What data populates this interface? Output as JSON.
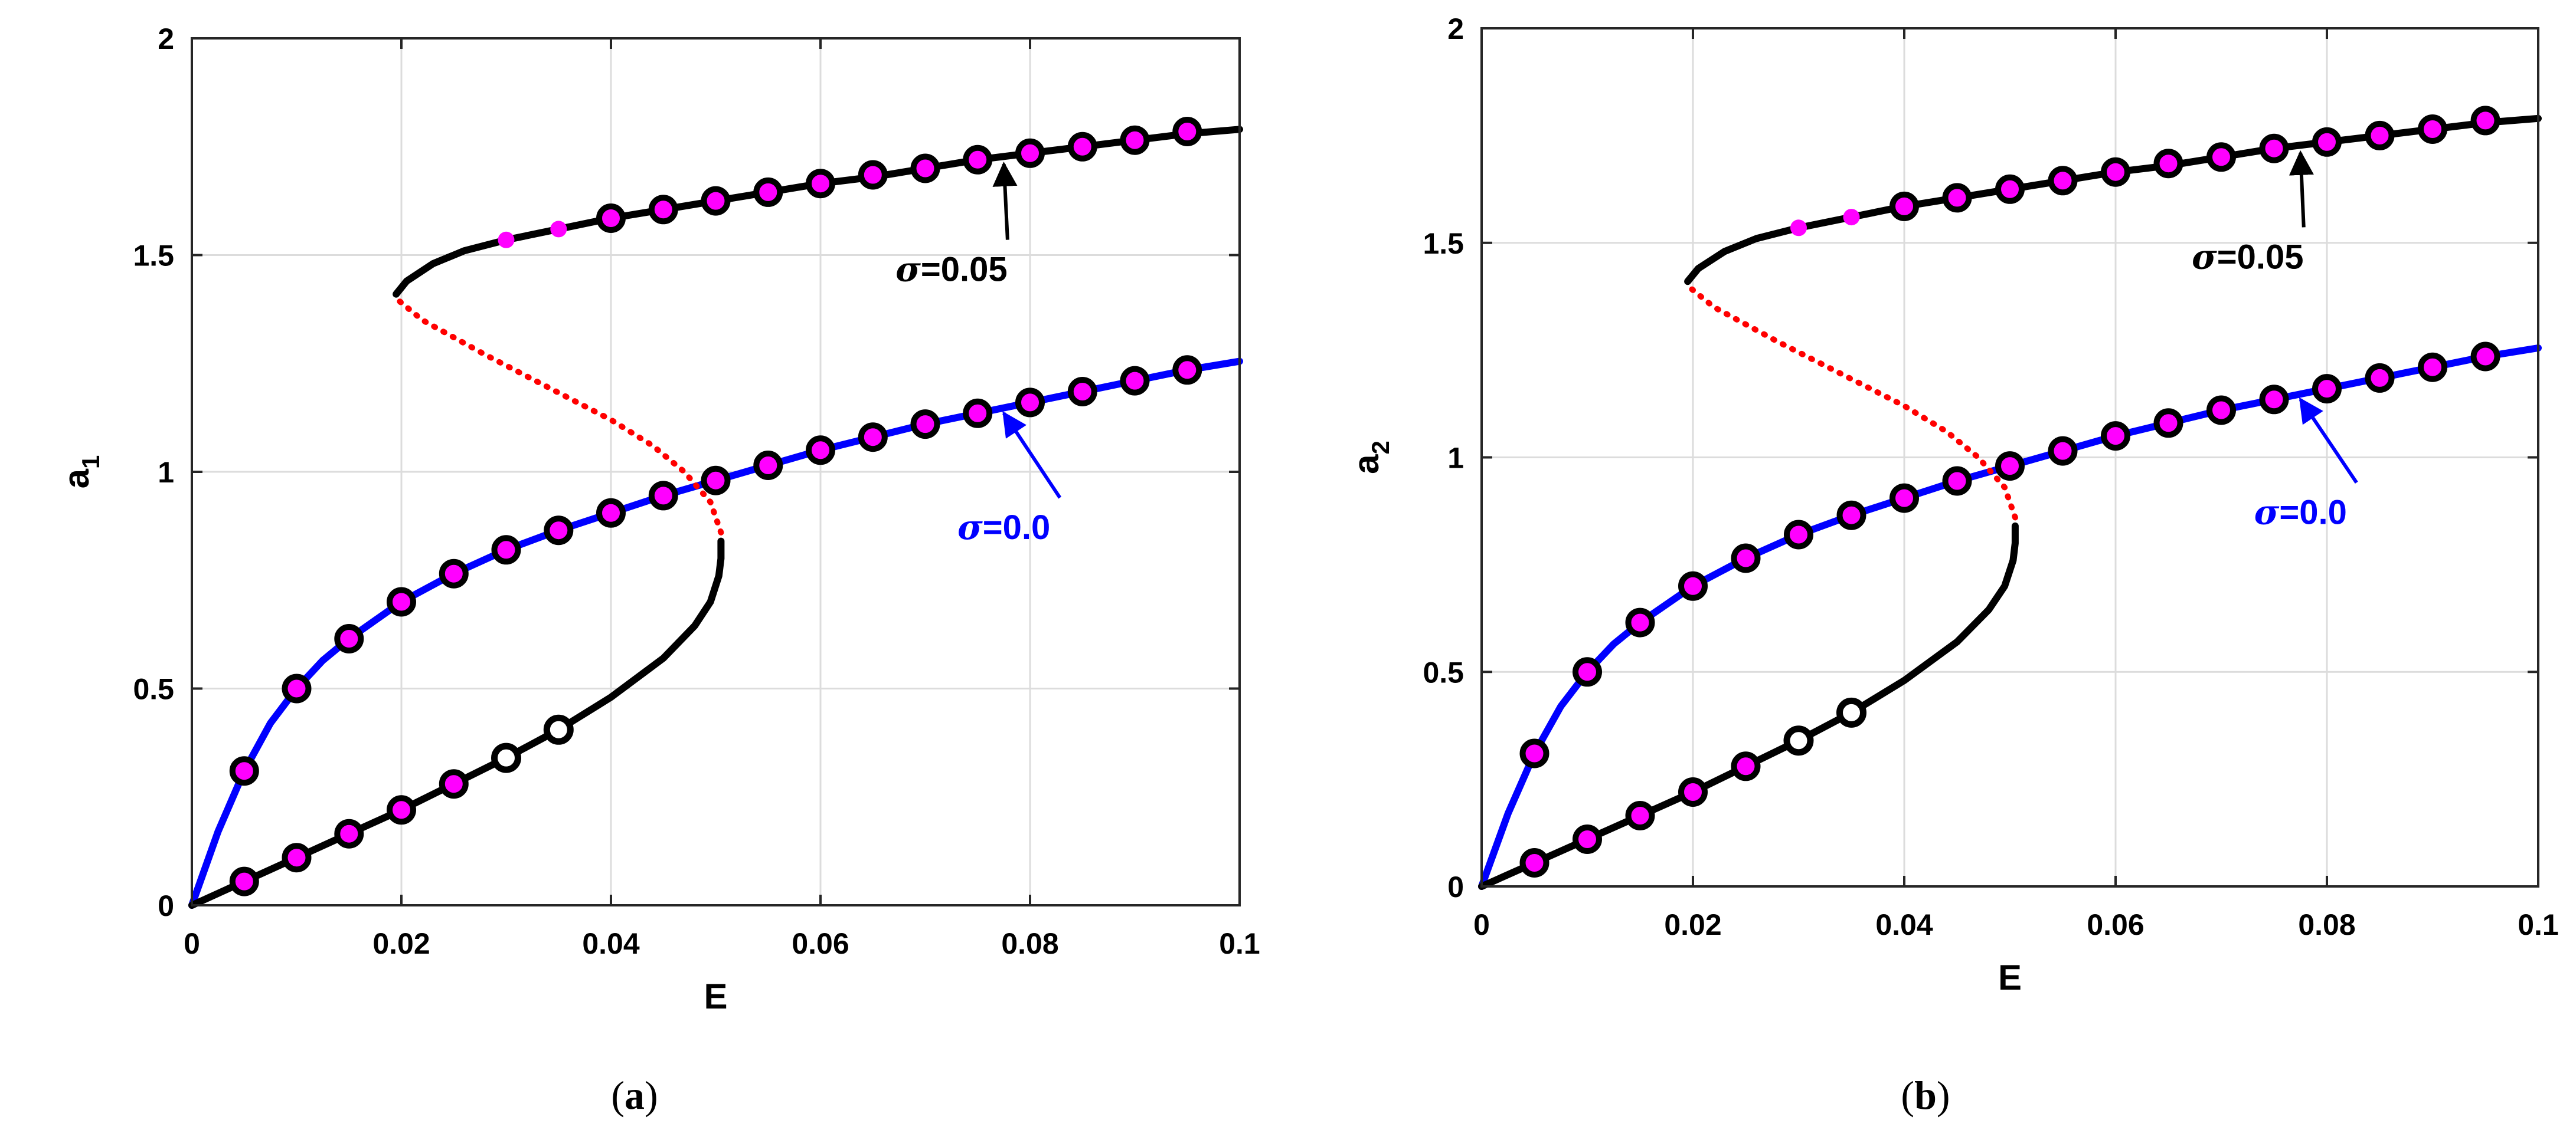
{
  "chart_data": [
    {
      "panel": "a",
      "type": "line",
      "caption_open": "(",
      "caption_letter": "a",
      "caption_close": ")",
      "xlabel": "E",
      "ylabel_base": "a",
      "ylabel_sub": "1",
      "xlim": [
        0,
        0.1
      ],
      "ylim": [
        0,
        2
      ],
      "xticks": [
        0,
        0.02,
        0.04,
        0.06,
        0.08,
        0.1
      ],
      "xtick_labels": [
        "0",
        "0.02",
        "0.04",
        "0.06",
        "0.08",
        "0.1"
      ],
      "yticks": [
        0,
        0.5,
        1,
        1.5,
        2
      ],
      "ytick_labels": [
        "0",
        "0.5",
        "1",
        "1.5",
        "2"
      ],
      "grid": true,
      "series": [
        {
          "name": "sigma=0.0",
          "color": "#0000ff",
          "style": "solid",
          "x": [
            0,
            0.0025,
            0.005,
            0.0075,
            0.01,
            0.0125,
            0.015,
            0.02,
            0.025,
            0.03,
            0.035,
            0.04,
            0.045,
            0.05,
            0.055,
            0.06,
            0.065,
            0.07,
            0.075,
            0.08,
            0.085,
            0.09,
            0.095,
            0.1
          ],
          "y": [
            0,
            0.17,
            0.31,
            0.42,
            0.5,
            0.565,
            0.615,
            0.7,
            0.765,
            0.82,
            0.865,
            0.905,
            0.945,
            0.98,
            1.015,
            1.05,
            1.08,
            1.11,
            1.135,
            1.16,
            1.185,
            1.21,
            1.235,
            1.255
          ]
        },
        {
          "name": "sigma=0.05 lower stable",
          "color": "#000000",
          "style": "solid",
          "x": [
            0,
            0.005,
            0.01,
            0.015,
            0.02,
            0.025,
            0.03,
            0.035,
            0.04,
            0.045,
            0.048,
            0.0495,
            0.0503,
            0.0505,
            0.0505
          ],
          "y": [
            0,
            0.055,
            0.11,
            0.165,
            0.22,
            0.28,
            0.34,
            0.405,
            0.48,
            0.57,
            0.645,
            0.7,
            0.76,
            0.8,
            0.84
          ]
        },
        {
          "name": "sigma=0.05 unstable",
          "color": "#ff0000",
          "style": "dotted",
          "x": [
            0.0505,
            0.0495,
            0.047,
            0.044,
            0.04,
            0.036,
            0.032,
            0.028,
            0.025,
            0.022,
            0.0205,
            0.0195
          ],
          "y": [
            0.86,
            0.93,
            1.0,
            1.06,
            1.12,
            1.17,
            1.22,
            1.27,
            1.31,
            1.35,
            1.38,
            1.4
          ]
        },
        {
          "name": "sigma=0.05 upper stable",
          "color": "#000000",
          "style": "solid",
          "x": [
            0.0195,
            0.0205,
            0.023,
            0.026,
            0.03,
            0.035,
            0.04,
            0.045,
            0.05,
            0.055,
            0.06,
            0.065,
            0.07,
            0.075,
            0.08,
            0.085,
            0.09,
            0.095,
            0.1
          ],
          "y": [
            1.41,
            1.44,
            1.48,
            1.51,
            1.535,
            1.56,
            1.585,
            1.605,
            1.625,
            1.645,
            1.665,
            1.68,
            1.7,
            1.72,
            1.735,
            1.75,
            1.765,
            1.78,
            1.79
          ]
        }
      ],
      "markers": [
        {
          "name": "sigma=0.0 numeric",
          "style": "magenta-filled",
          "x": [
            0.005,
            0.01,
            0.015,
            0.02,
            0.025,
            0.03,
            0.035,
            0.04,
            0.045,
            0.05,
            0.055,
            0.06,
            0.065,
            0.07,
            0.075,
            0.08,
            0.085,
            0.09,
            0.095
          ],
          "y": [
            0.31,
            0.5,
            0.615,
            0.7,
            0.765,
            0.82,
            0.865,
            0.905,
            0.945,
            0.98,
            1.015,
            1.05,
            1.08,
            1.11,
            1.135,
            1.16,
            1.185,
            1.21,
            1.235
          ]
        },
        {
          "name": "sigma=0.05 lower numeric",
          "style": "magenta-filled",
          "x": [
            0.005,
            0.01,
            0.015,
            0.02,
            0.025
          ],
          "y": [
            0.055,
            0.11,
            0.165,
            0.22,
            0.28
          ]
        },
        {
          "name": "sigma=0.05 lower numeric open",
          "style": "open",
          "x": [
            0.03,
            0.035
          ],
          "y": [
            0.34,
            0.405
          ]
        },
        {
          "name": "sigma=0.05 upper numeric small",
          "style": "magenta-small",
          "x": [
            0.03,
            0.035
          ],
          "y": [
            1.535,
            1.56
          ]
        },
        {
          "name": "sigma=0.05 upper numeric",
          "style": "magenta-filled",
          "x": [
            0.04,
            0.045,
            0.05,
            0.055,
            0.06,
            0.065,
            0.07,
            0.075,
            0.08,
            0.085,
            0.09,
            0.095
          ],
          "y": [
            1.585,
            1.605,
            1.625,
            1.645,
            1.665,
            1.685,
            1.7,
            1.72,
            1.735,
            1.75,
            1.765,
            1.785
          ]
        }
      ],
      "annotations": [
        {
          "prefix": "σ",
          "text": "=0.05",
          "color": "#000000",
          "x": 0.0725,
          "y": 1.44,
          "arrow_to": [
            0.0775,
            1.71
          ]
        },
        {
          "prefix": "σ",
          "text": "=0.0",
          "color": "#0000ff",
          "x": 0.0775,
          "y": 0.845,
          "arrow_to": [
            0.0775,
            1.135
          ]
        }
      ]
    },
    {
      "panel": "b",
      "type": "line",
      "caption_open": "(",
      "caption_letter": "b",
      "caption_close": ")",
      "xlabel": "E",
      "ylabel_base": "a",
      "ylabel_sub": "2",
      "xlim": [
        0,
        0.1
      ],
      "ylim": [
        0,
        2
      ],
      "xticks": [
        0,
        0.02,
        0.04,
        0.06,
        0.08,
        0.1
      ],
      "xtick_labels": [
        "0",
        "0.02",
        "0.04",
        "0.06",
        "0.08",
        "0.1"
      ],
      "yticks": [
        0,
        0.5,
        1,
        1.5,
        2
      ],
      "ytick_labels": [
        "0",
        "0.5",
        "1",
        "1.5",
        "2"
      ],
      "grid": true,
      "series": [
        {
          "name": "sigma=0.0",
          "color": "#0000ff",
          "style": "solid",
          "x": [
            0,
            0.0025,
            0.005,
            0.0075,
            0.01,
            0.0125,
            0.015,
            0.02,
            0.025,
            0.03,
            0.035,
            0.04,
            0.045,
            0.05,
            0.055,
            0.06,
            0.065,
            0.07,
            0.075,
            0.08,
            0.085,
            0.09,
            0.095,
            0.1
          ],
          "y": [
            0,
            0.17,
            0.31,
            0.42,
            0.5,
            0.565,
            0.615,
            0.7,
            0.765,
            0.82,
            0.865,
            0.905,
            0.945,
            0.98,
            1.015,
            1.05,
            1.08,
            1.11,
            1.135,
            1.16,
            1.185,
            1.21,
            1.235,
            1.255
          ]
        },
        {
          "name": "sigma=0.05 lower stable",
          "color": "#000000",
          "style": "solid",
          "x": [
            0,
            0.005,
            0.01,
            0.015,
            0.02,
            0.025,
            0.03,
            0.035,
            0.04,
            0.045,
            0.048,
            0.0495,
            0.0503,
            0.0505,
            0.0505
          ],
          "y": [
            0,
            0.055,
            0.11,
            0.165,
            0.22,
            0.28,
            0.34,
            0.405,
            0.48,
            0.57,
            0.645,
            0.7,
            0.76,
            0.8,
            0.84
          ]
        },
        {
          "name": "sigma=0.05 unstable",
          "color": "#ff0000",
          "style": "dotted",
          "x": [
            0.0505,
            0.0495,
            0.047,
            0.044,
            0.04,
            0.036,
            0.032,
            0.028,
            0.025,
            0.022,
            0.0205,
            0.0195
          ],
          "y": [
            0.86,
            0.93,
            1.0,
            1.06,
            1.12,
            1.17,
            1.22,
            1.27,
            1.31,
            1.35,
            1.38,
            1.4
          ]
        },
        {
          "name": "sigma=0.05 upper stable",
          "color": "#000000",
          "style": "solid",
          "x": [
            0.0195,
            0.0205,
            0.023,
            0.026,
            0.03,
            0.035,
            0.04,
            0.045,
            0.05,
            0.055,
            0.06,
            0.065,
            0.07,
            0.075,
            0.08,
            0.085,
            0.09,
            0.095,
            0.1
          ],
          "y": [
            1.41,
            1.44,
            1.48,
            1.51,
            1.535,
            1.56,
            1.585,
            1.605,
            1.625,
            1.645,
            1.665,
            1.68,
            1.7,
            1.72,
            1.735,
            1.75,
            1.765,
            1.78,
            1.79
          ]
        }
      ],
      "markers": [
        {
          "name": "sigma=0.0 numeric",
          "style": "magenta-filled",
          "x": [
            0.005,
            0.01,
            0.015,
            0.02,
            0.025,
            0.03,
            0.035,
            0.04,
            0.045,
            0.05,
            0.055,
            0.06,
            0.065,
            0.07,
            0.075,
            0.08,
            0.085,
            0.09,
            0.095
          ],
          "y": [
            0.31,
            0.5,
            0.615,
            0.7,
            0.765,
            0.82,
            0.865,
            0.905,
            0.945,
            0.98,
            1.015,
            1.05,
            1.08,
            1.11,
            1.135,
            1.16,
            1.185,
            1.21,
            1.235
          ]
        },
        {
          "name": "sigma=0.05 lower numeric",
          "style": "magenta-filled",
          "x": [
            0.005,
            0.01,
            0.015,
            0.02,
            0.025
          ],
          "y": [
            0.055,
            0.11,
            0.165,
            0.22,
            0.28
          ]
        },
        {
          "name": "sigma=0.05 lower numeric open",
          "style": "open",
          "x": [
            0.03,
            0.035
          ],
          "y": [
            0.34,
            0.405
          ]
        },
        {
          "name": "sigma=0.05 upper numeric small",
          "style": "magenta-small",
          "x": [
            0.03,
            0.035
          ],
          "y": [
            1.535,
            1.56
          ]
        },
        {
          "name": "sigma=0.05 upper numeric",
          "style": "magenta-filled",
          "x": [
            0.04,
            0.045,
            0.05,
            0.055,
            0.06,
            0.065,
            0.07,
            0.075,
            0.08,
            0.085,
            0.09,
            0.095
          ],
          "y": [
            1.585,
            1.605,
            1.625,
            1.645,
            1.665,
            1.685,
            1.7,
            1.72,
            1.735,
            1.75,
            1.765,
            1.785
          ]
        }
      ],
      "annotations": [
        {
          "prefix": "σ",
          "text": "=0.05",
          "color": "#000000",
          "x": 0.0725,
          "y": 1.44,
          "arrow_to": [
            0.0775,
            1.71
          ]
        },
        {
          "prefix": "σ",
          "text": "=0.0",
          "color": "#0000ff",
          "x": 0.0775,
          "y": 0.845,
          "arrow_to": [
            0.0775,
            1.135
          ]
        }
      ]
    }
  ]
}
